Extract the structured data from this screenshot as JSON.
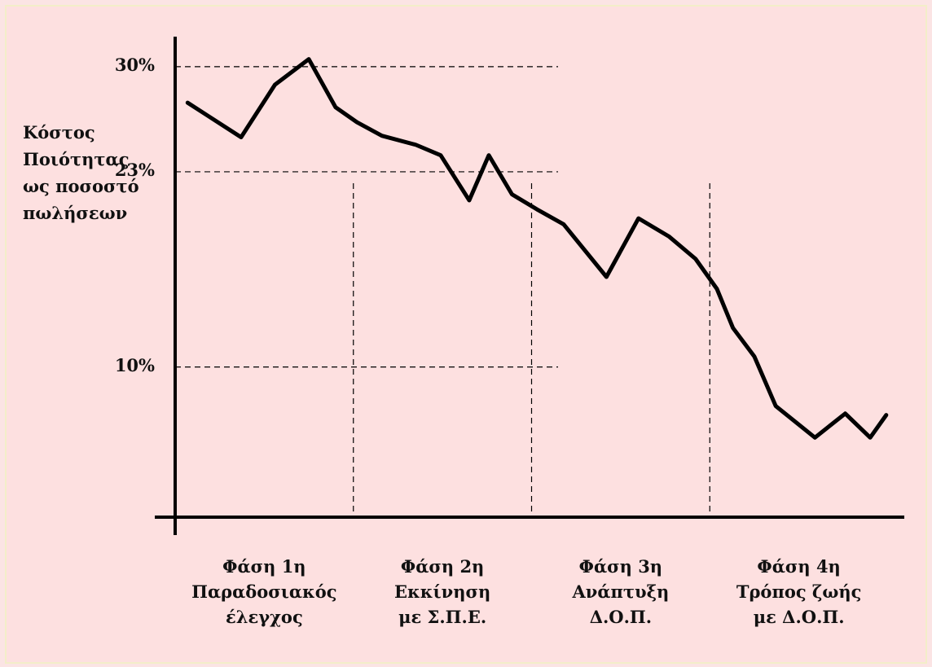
{
  "chart_data": {
    "type": "line",
    "y_label": "Κόστος\nΠοιότητας\nως ποσοστό\nπωλήσεων",
    "categories": [
      "Φάση 1η\nΠαραδοσιακός\nέλεγχος",
      "Φάση 2η\nΕκκίνηση\nμε Σ.Π.Ε.",
      "Φάση 3η\nΑνάπτυξη\nΔ.Ο.Π.",
      "Φάση 4η\nΤρόπος ζωής\nμε Δ.Ο.Π."
    ],
    "x": [
      0.07,
      0.37,
      0.56,
      0.75,
      0.9,
      1.02,
      1.16,
      1.35,
      1.49,
      1.65,
      1.76,
      1.89,
      2.03,
      2.18,
      2.42,
      2.6,
      2.77,
      2.92,
      3.04,
      3.13,
      3.25,
      3.37,
      3.59,
      3.76,
      3.9,
      3.99
    ],
    "xlim": [
      0,
      4
    ],
    "series": [
      {
        "color": "#000000",
        "values": [
          27.6,
          25.3,
          28.8,
          30.5,
          27.3,
          26.3,
          25.4,
          24.8,
          24.1,
          21.1,
          24.1,
          21.5,
          20.5,
          19.5,
          16.0,
          19.9,
          18.7,
          17.2,
          15.2,
          12.6,
          10.7,
          7.4,
          5.3,
          6.9,
          5.3,
          6.8
        ]
      }
    ],
    "ylim": [
      0,
      32
    ],
    "yticks": [
      {
        "value": 10,
        "label": "10%"
      },
      {
        "value": 23,
        "label": "23%"
      },
      {
        "value": 30,
        "label": "30%"
      }
    ],
    "grid": true
  }
}
